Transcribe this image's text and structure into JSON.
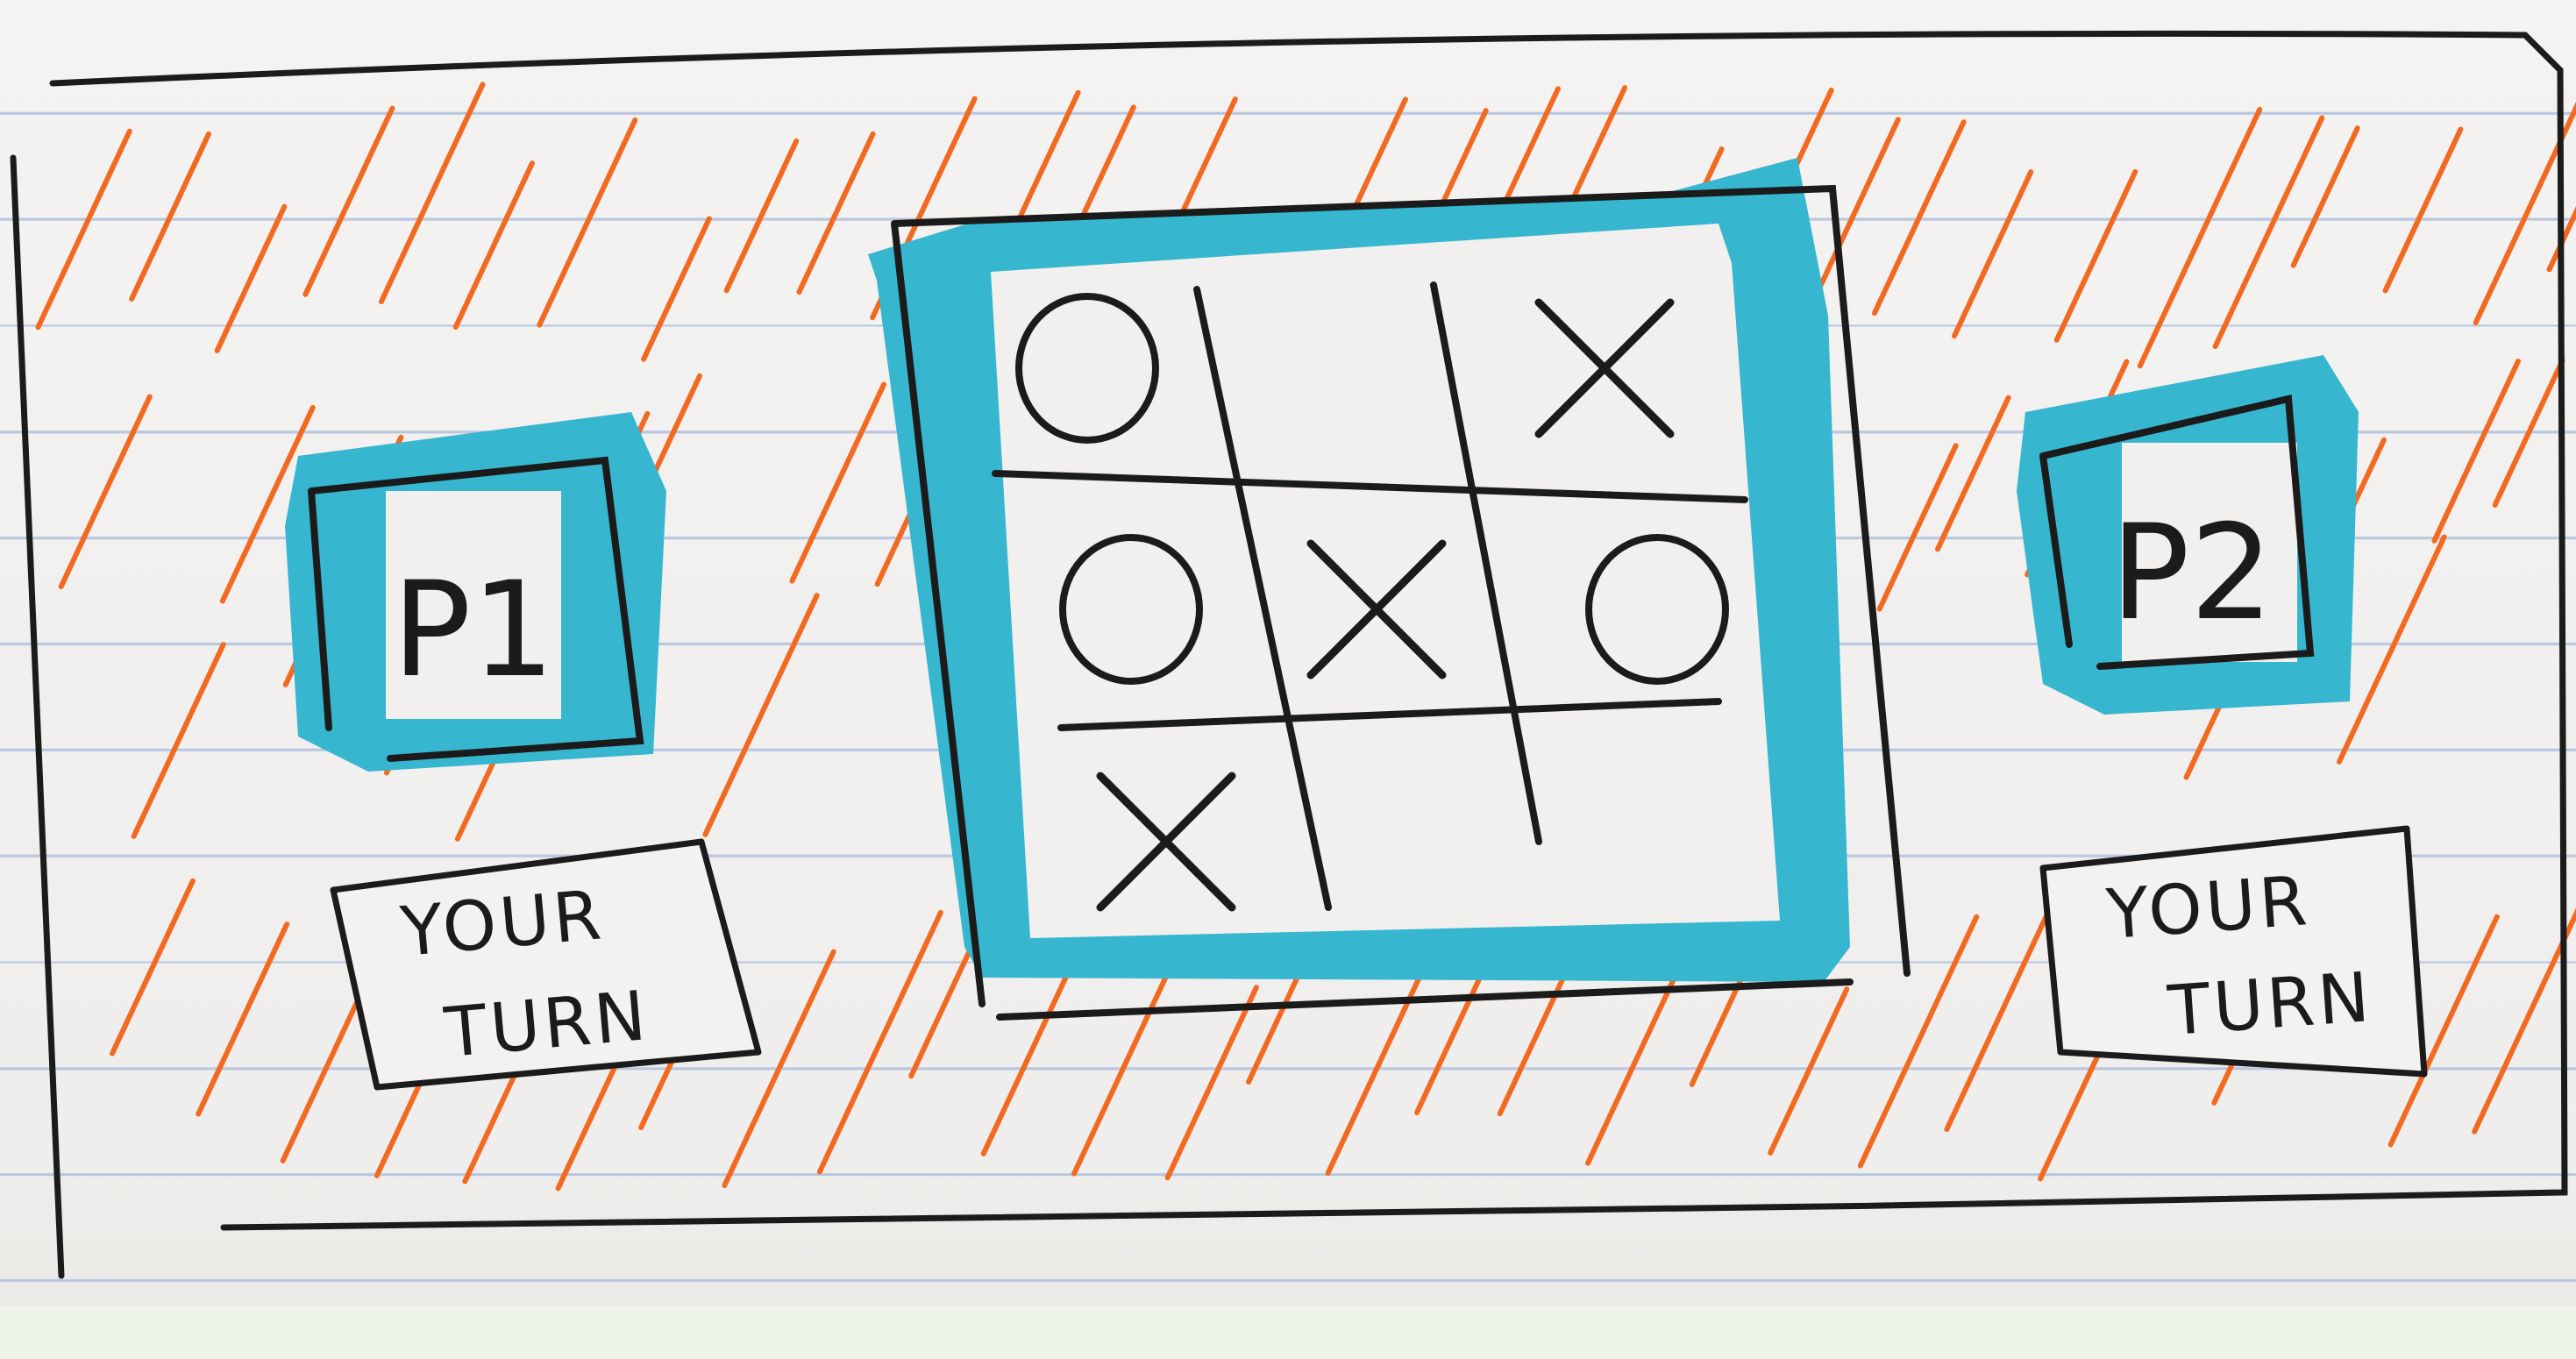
{
  "players": [
    {
      "id": "p1",
      "label": "P1",
      "turn_line1": "YOUR",
      "turn_line2": "TURN",
      "highlighted": true
    },
    {
      "id": "p2",
      "label": "P2",
      "turn_line1": "YOUR",
      "turn_line2": "TURN",
      "highlighted": true
    }
  ],
  "board": {
    "cells": [
      [
        "O",
        "",
        "X"
      ],
      [
        "O",
        "X",
        "O"
      ],
      [
        "X",
        "",
        ""
      ]
    ]
  },
  "colors": {
    "ink": "#1b1b1b",
    "highlight": "#37b6cf",
    "hatch": "#f26a21",
    "paper": "#f2f1ef",
    "rule": "#b8c6e2"
  }
}
